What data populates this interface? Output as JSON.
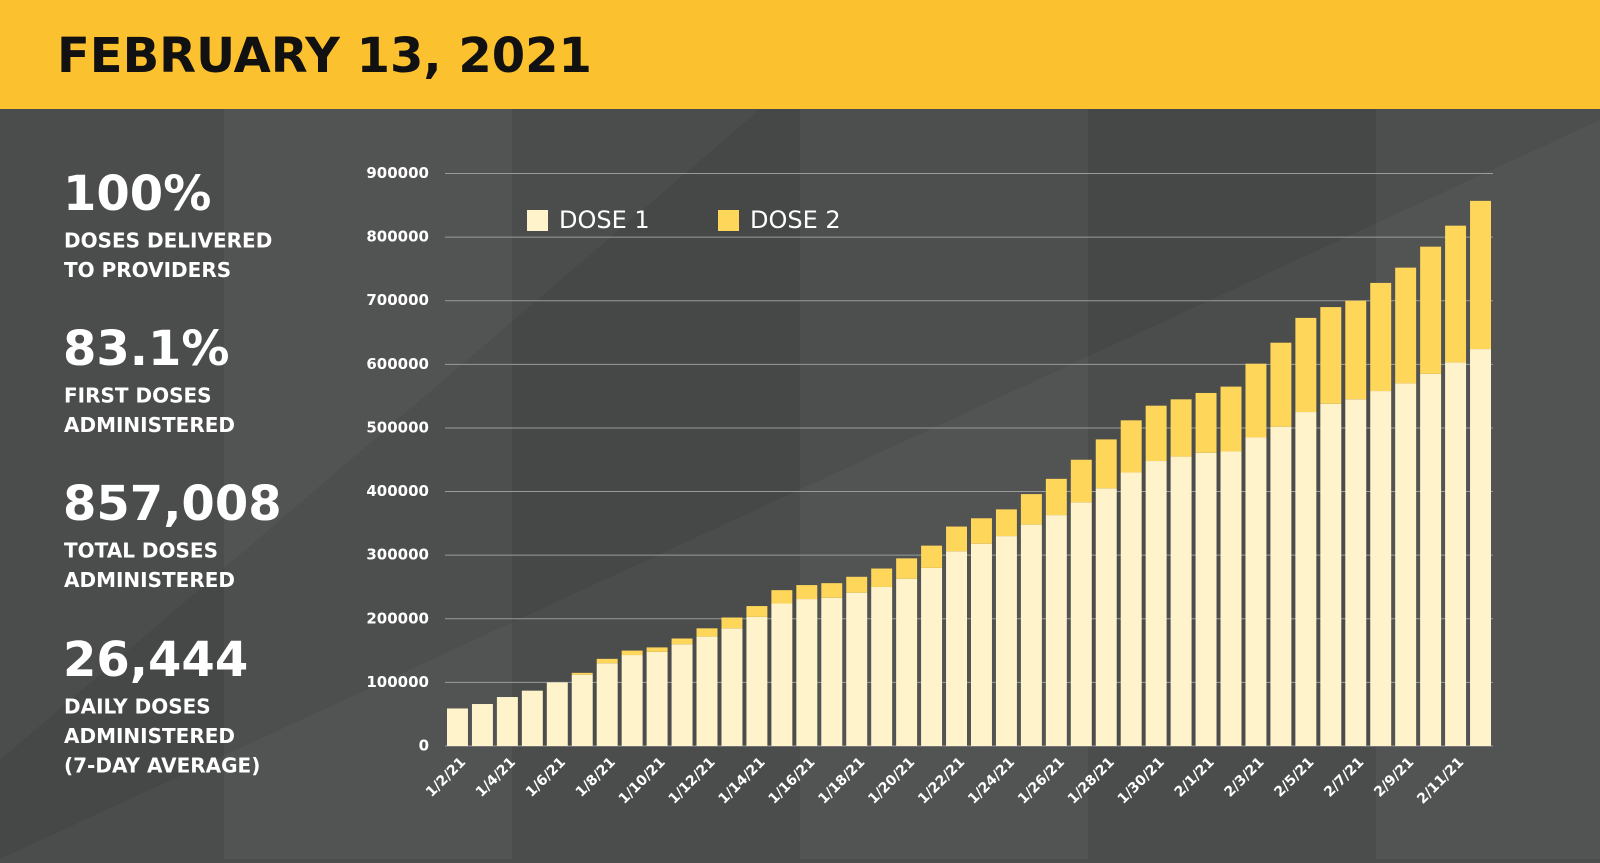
{
  "header": {
    "title": "FEBRUARY 13, 2021"
  },
  "stats": [
    {
      "value": "100%",
      "label": [
        "DOSES DELIVERED",
        "TO PROVIDERS"
      ]
    },
    {
      "value": "83.1%",
      "label": [
        "FIRST DOSES",
        "ADMINISTERED"
      ]
    },
    {
      "value": "857,008",
      "label": [
        "TOTAL DOSES",
        "ADMINISTERED"
      ]
    },
    {
      "value": "26,444",
      "label": [
        "DAILY DOSES",
        "ADMINISTERED",
        "(7-DAY AVERAGE)"
      ]
    }
  ],
  "chart_data": {
    "type": "stacked-bar",
    "categories": [
      "1/2/21",
      null,
      "1/4/21",
      null,
      "1/6/21",
      null,
      "1/8/21",
      null,
      "1/10/21",
      null,
      "1/12/21",
      null,
      "1/14/21",
      null,
      "1/16/21",
      null,
      "1/18/21",
      null,
      "1/20/21",
      null,
      "1/22/21",
      null,
      "1/24/21",
      null,
      "1/26/21",
      null,
      "1/28/21",
      null,
      "1/30/21",
      null,
      "2/1/21",
      null,
      "2/3/21",
      null,
      "2/5/21",
      null,
      "2/7/21",
      null,
      "2/9/21",
      null,
      "2/11/21",
      null
    ],
    "series": [
      {
        "name": "DOSE 1",
        "color": "#fff3cc",
        "values": [
          59000,
          66000,
          77000,
          87000,
          100000,
          112000,
          130000,
          143000,
          148000,
          160000,
          172000,
          185000,
          203000,
          224000,
          231000,
          233000,
          241000,
          250000,
          263000,
          280000,
          306000,
          318000,
          330000,
          348000,
          363000,
          383000,
          405000,
          430000,
          448000,
          455000,
          461000,
          463000,
          485000,
          502000,
          525000,
          538000,
          545000,
          558000,
          570000,
          585000,
          603000,
          624000
        ]
      },
      {
        "name": "DOSE 2",
        "color": "#fdd65a",
        "values": [
          0,
          0,
          0,
          0,
          0,
          3000,
          7000,
          7000,
          7000,
          9000,
          13000,
          17000,
          17000,
          21000,
          22000,
          23000,
          25000,
          29000,
          32000,
          35000,
          39000,
          40000,
          42000,
          48000,
          57000,
          67000,
          77000,
          82000,
          87000,
          90000,
          94000,
          102000,
          116000,
          132000,
          148000,
          152000,
          155000,
          170000,
          182000,
          200000,
          215000,
          233000
        ]
      }
    ],
    "ylim": [
      0,
      900000
    ],
    "yticks": [
      0,
      100000,
      200000,
      300000,
      400000,
      500000,
      600000,
      700000,
      800000,
      900000
    ],
    "grid": true
  }
}
